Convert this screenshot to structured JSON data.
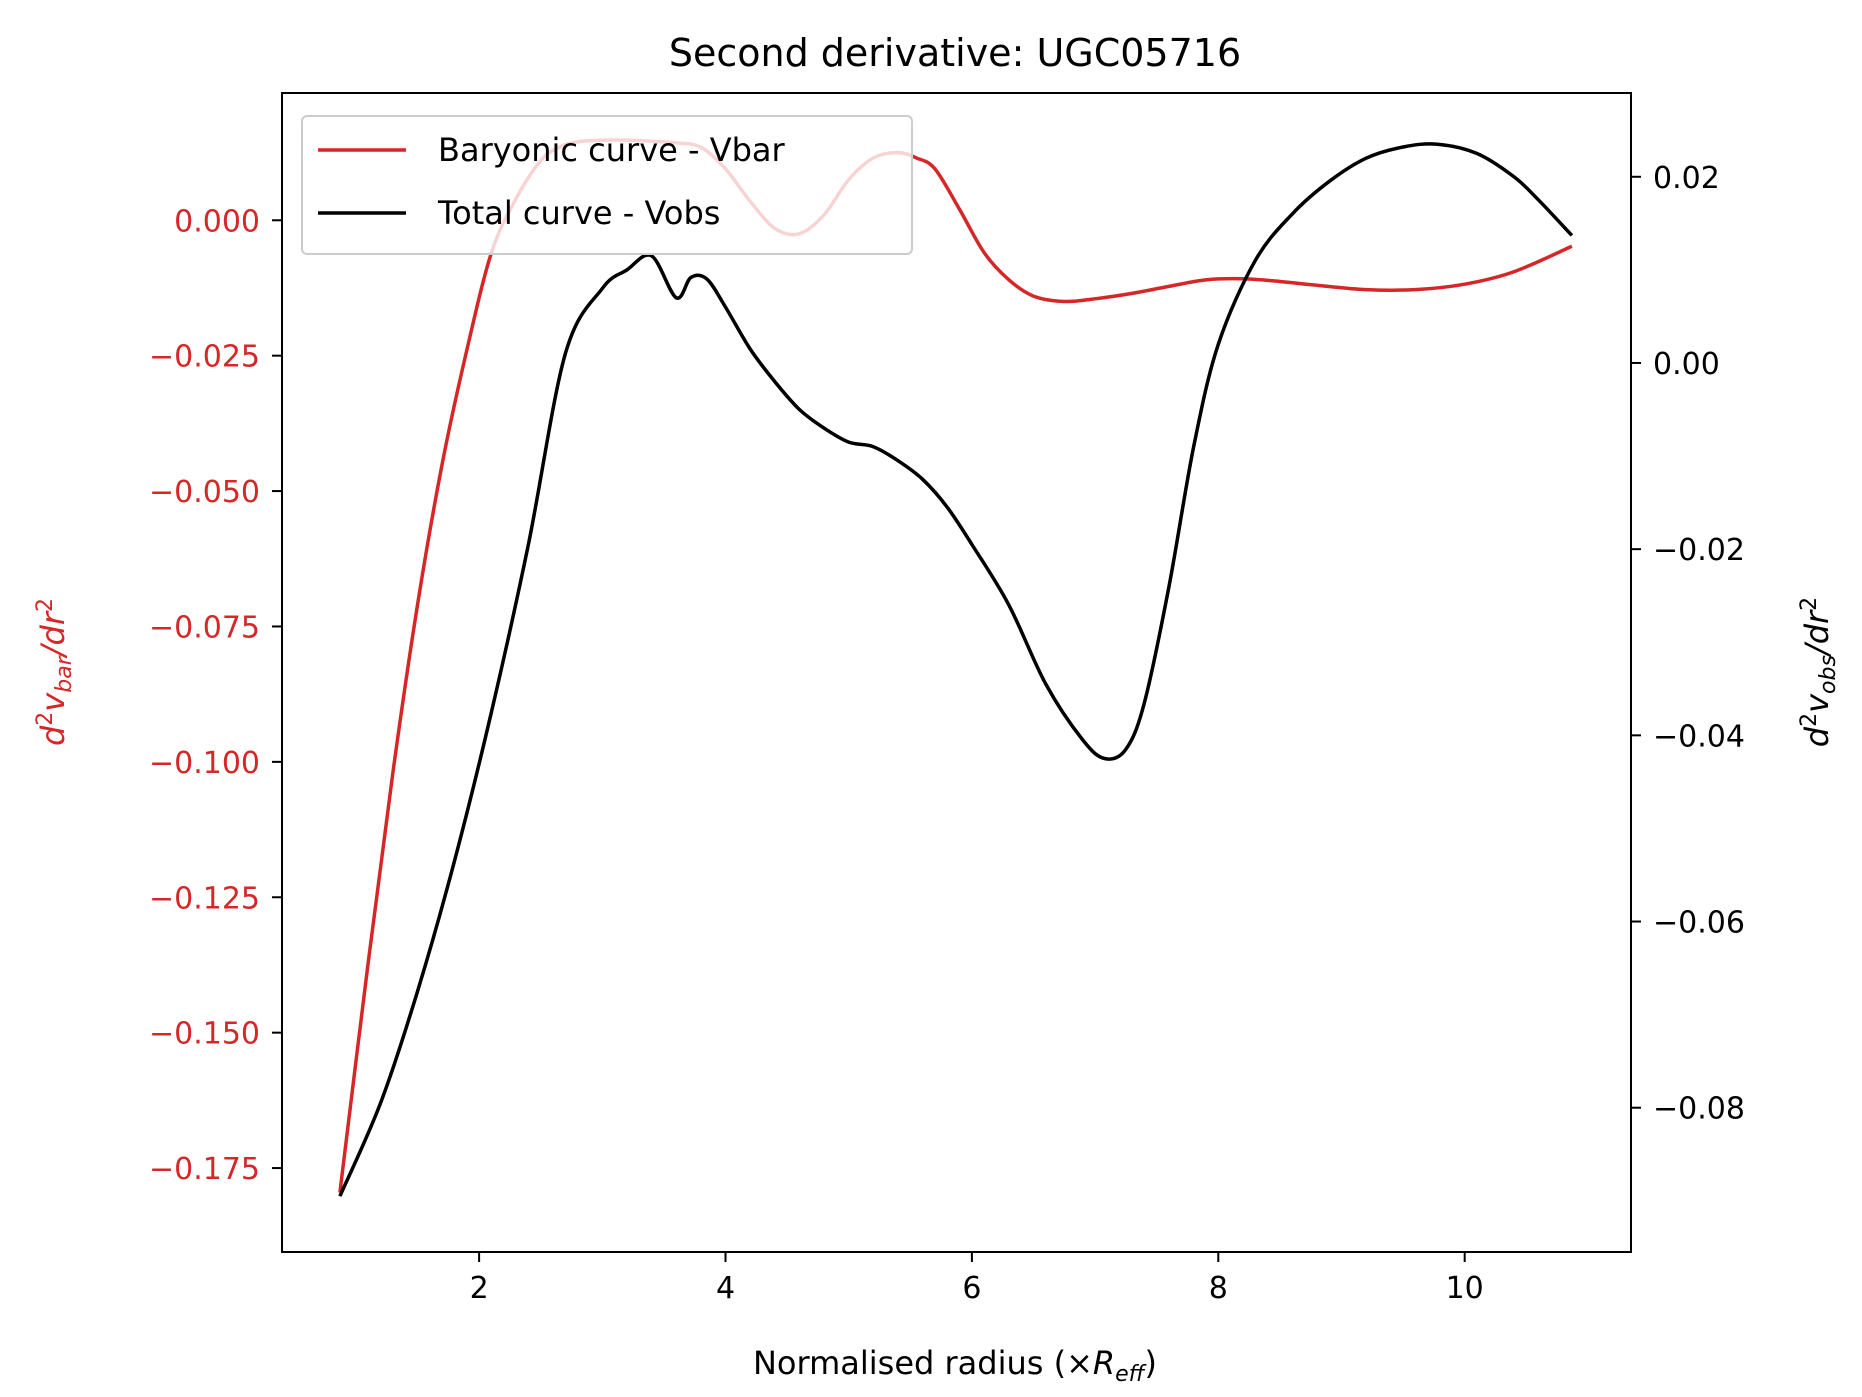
{
  "chart_data": {
    "type": "line",
    "title": "Second derivative: UGC05716",
    "xlabel": "Normalised radius (×R_eff)",
    "xlabel_parts": {
      "prefix": "Normalised radius (×",
      "var": "R",
      "sub": "eff",
      "suffix": ")"
    },
    "ylabel_left": "d²v_bar/dr²",
    "ylabel_left_parts": {
      "d": "d",
      "sup1": "2",
      "v": "v",
      "sub": "bar",
      "mid": "/",
      "dr": "dr",
      "sup2": "2"
    },
    "ylabel_right": "d²v_obs/dr²",
    "ylabel_right_parts": {
      "d": "d",
      "sup1": "2",
      "v": "v",
      "sub": "obs",
      "mid": "/",
      "dr": "dr",
      "sup2": "2"
    },
    "xlim": [
      0.4,
      11.35
    ],
    "ylim_left": [
      -0.1905,
      0.0235
    ],
    "ylim_right": [
      -0.0955,
      0.029
    ],
    "x_ticks": [
      2,
      4,
      6,
      8,
      10
    ],
    "x_tick_labels": [
      "2",
      "4",
      "6",
      "8",
      "10"
    ],
    "y_left_ticks": [
      0.0,
      -0.025,
      -0.05,
      -0.075,
      -0.1,
      -0.125,
      -0.15,
      -0.175
    ],
    "y_left_tick_labels": [
      "0.000",
      "−0.025",
      "−0.050",
      "−0.075",
      "−0.100",
      "−0.125",
      "−0.150",
      "−0.175"
    ],
    "y_right_ticks": [
      0.02,
      0.0,
      -0.02,
      -0.04,
      -0.06,
      -0.08
    ],
    "y_right_tick_labels": [
      "0.02",
      "0.00",
      "−0.02",
      "−0.04",
      "−0.06",
      "−0.08"
    ],
    "grid": false,
    "legend_position": "top-left",
    "series": [
      {
        "name": "Baryonic curve - Vbar",
        "color": "#d62728",
        "axis": "left",
        "x": [
          0.87,
          1.1,
          1.3,
          1.5,
          1.7,
          1.9,
          2.1,
          2.3,
          2.5,
          2.65,
          2.8,
          3.0,
          3.2,
          3.4,
          3.6,
          3.8,
          4.0,
          4.2,
          4.4,
          4.6,
          4.8,
          5.0,
          5.2,
          5.4,
          5.55,
          5.7,
          5.9,
          6.1,
          6.3,
          6.5,
          6.75,
          7.0,
          7.3,
          7.6,
          7.9,
          8.2,
          8.5,
          8.8,
          9.2,
          9.6,
          10.0,
          10.4,
          10.87
        ],
        "y": [
          -0.1795,
          -0.137,
          -0.102,
          -0.071,
          -0.045,
          -0.024,
          -0.006,
          0.004,
          0.011,
          0.0135,
          0.0145,
          0.0148,
          0.0148,
          0.0146,
          0.0143,
          0.0135,
          0.0095,
          0.0035,
          -0.0015,
          -0.0025,
          0.001,
          0.0075,
          0.0115,
          0.0125,
          0.0115,
          0.0095,
          0.002,
          -0.006,
          -0.011,
          -0.014,
          -0.015,
          -0.0145,
          -0.0135,
          -0.0122,
          -0.011,
          -0.0108,
          -0.0113,
          -0.012,
          -0.0128,
          -0.0128,
          -0.0118,
          -0.0095,
          -0.0048
        ]
      },
      {
        "name": "Total curve - Vobs",
        "color": "#000000",
        "axis": "right",
        "x": [
          0.87,
          1.2,
          1.5,
          1.8,
          2.1,
          2.4,
          2.7,
          3.0,
          3.2,
          3.4,
          3.6,
          3.72,
          3.85,
          4.0,
          4.2,
          4.4,
          4.6,
          4.8,
          5.0,
          5.2,
          5.4,
          5.6,
          5.8,
          6.0,
          6.3,
          6.6,
          6.9,
          7.08,
          7.25,
          7.4,
          7.6,
          7.8,
          8.0,
          8.3,
          8.6,
          8.9,
          9.2,
          9.5,
          9.78,
          10.1,
          10.4,
          10.6,
          10.87
        ],
        "y": [
          -0.0895,
          -0.0795,
          -0.0675,
          -0.0535,
          -0.0375,
          -0.0195,
          0.001,
          0.008,
          0.01,
          0.0115,
          0.007,
          0.0092,
          0.009,
          0.006,
          0.0015,
          -0.002,
          -0.005,
          -0.007,
          -0.0085,
          -0.009,
          -0.0105,
          -0.0125,
          -0.0155,
          -0.0195,
          -0.026,
          -0.0345,
          -0.0405,
          -0.0425,
          -0.0415,
          -0.0365,
          -0.024,
          -0.009,
          0.002,
          0.011,
          0.016,
          0.0195,
          0.022,
          0.0232,
          0.0235,
          0.0225,
          0.02,
          0.0175,
          0.0137
        ]
      }
    ]
  }
}
